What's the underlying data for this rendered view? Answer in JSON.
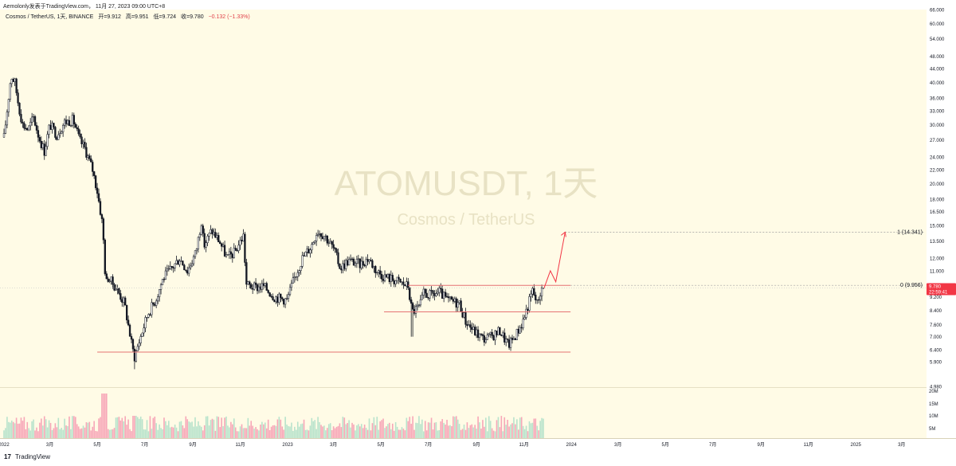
{
  "header": {
    "attribution": "Aemolonly发表于TradingView.com， 11月 27, 2023 09:00 UTC+8"
  },
  "legend": {
    "symbol": "Cosmos / TetherUS, 1天, BINANCE",
    "open": "开=9.912",
    "high": "高=9.951",
    "low": "低=9.724",
    "close": "收=9.780",
    "change": "−0.132 (−1.33%)"
  },
  "watermark": {
    "ticker": "ATOMUSDT, 1天",
    "name": "Cosmos / TetherUS"
  },
  "price_tag": {
    "price": "9.780",
    "countdown": "22:59:41"
  },
  "fib_labels": {
    "level_1": "1 (14.341)",
    "level_0": "0 (9.956)"
  },
  "footer": {
    "brand": "TradingView"
  },
  "colors": {
    "background": "#fffbe6",
    "candle": "#131722",
    "support_line": "#e57373",
    "fib_line": "#9e9e9e",
    "projection": "#f23645",
    "price_tag": "#f23645",
    "volume": "#f06292",
    "watermark": "#e8e2c4"
  },
  "chart_data": {
    "type": "line",
    "title": "",
    "xlabel": "",
    "ylabel": "",
    "y_scale": "log",
    "ylim": [
      4.98,
      66.0
    ],
    "y_ticks": [
      66.0,
      60.0,
      54.0,
      48.0,
      44.0,
      40.0,
      36.0,
      33.0,
      30.0,
      27.0,
      24.0,
      22.0,
      20.0,
      18.0,
      16.5,
      15.0,
      13.5,
      12.0,
      11.0,
      9.2,
      8.4,
      7.6,
      7.0,
      6.4,
      5.9,
      4.98
    ],
    "x_ticks": [
      "2022",
      "3月",
      "5月",
      "7月",
      "9月",
      "11月",
      "2023",
      "3月",
      "5月",
      "7月",
      "9月",
      "11月",
      "2024",
      "3月",
      "5月",
      "7月",
      "9月",
      "11月",
      "2025",
      "3月"
    ],
    "series": [
      {
        "values": [
          [
            "2022-01-01",
            27.5
          ],
          [
            "2022-01-05",
            33.0
          ],
          [
            "2022-01-10",
            42.0
          ],
          [
            "2022-01-15",
            40.0
          ],
          [
            "2022-01-20",
            34.0
          ],
          [
            "2022-01-25",
            30.0
          ],
          [
            "2022-02-01",
            29.0
          ],
          [
            "2022-02-08",
            31.5
          ],
          [
            "2022-02-15",
            27.5
          ],
          [
            "2022-02-22",
            25.0
          ],
          [
            "2022-03-01",
            30.0
          ],
          [
            "2022-03-10",
            28.0
          ],
          [
            "2022-03-20",
            30.5
          ],
          [
            "2022-03-31",
            31.0
          ],
          [
            "2022-04-08",
            27.0
          ],
          [
            "2022-04-15",
            25.5
          ],
          [
            "2022-04-25",
            22.0
          ],
          [
            "2022-05-01",
            19.0
          ],
          [
            "2022-05-08",
            15.0
          ],
          [
            "2022-05-12",
            10.0
          ],
          [
            "2022-05-15",
            10.5
          ],
          [
            "2022-05-25",
            9.8
          ],
          [
            "2022-06-05",
            8.8
          ],
          [
            "2022-06-15",
            6.5
          ],
          [
            "2022-06-18",
            6.1
          ],
          [
            "2022-06-25",
            6.9
          ],
          [
            "2022-07-05",
            8.2
          ],
          [
            "2022-07-15",
            9.0
          ],
          [
            "2022-07-25",
            10.5
          ],
          [
            "2022-08-05",
            11.2
          ],
          [
            "2022-08-15",
            12.0
          ],
          [
            "2022-08-25",
            11.0
          ],
          [
            "2022-09-05",
            12.5
          ],
          [
            "2022-09-12",
            15.5
          ],
          [
            "2022-09-15",
            13.0
          ],
          [
            "2022-09-25",
            14.5
          ],
          [
            "2022-10-05",
            13.5
          ],
          [
            "2022-10-15",
            12.0
          ],
          [
            "2022-10-25",
            12.5
          ],
          [
            "2022-11-05",
            14.0
          ],
          [
            "2022-11-09",
            10.0
          ],
          [
            "2022-11-20",
            9.8
          ],
          [
            "2022-12-01",
            9.9
          ],
          [
            "2022-12-15",
            9.2
          ],
          [
            "2022-12-31",
            9.0
          ],
          [
            "2023-01-10",
            10.5
          ],
          [
            "2023-01-20",
            12.0
          ],
          [
            "2023-01-31",
            13.0
          ],
          [
            "2023-02-08",
            14.5
          ],
          [
            "2023-02-18",
            14.0
          ],
          [
            "2023-03-01",
            12.8
          ],
          [
            "2023-03-10",
            11.2
          ],
          [
            "2023-03-20",
            11.8
          ],
          [
            "2023-04-05",
            11.5
          ],
          [
            "2023-04-15",
            12.0
          ],
          [
            "2023-04-25",
            11.0
          ],
          [
            "2023-05-05",
            10.6
          ],
          [
            "2023-05-20",
            10.3
          ],
          [
            "2023-06-05",
            9.9
          ],
          [
            "2023-06-10",
            8.3
          ],
          [
            "2023-06-20",
            8.6
          ],
          [
            "2023-06-25",
            9.4
          ],
          [
            "2023-07-05",
            9.3
          ],
          [
            "2023-07-15",
            9.5
          ],
          [
            "2023-07-25",
            9.0
          ],
          [
            "2023-08-10",
            8.8
          ],
          [
            "2023-08-18",
            7.8
          ],
          [
            "2023-08-28",
            7.3
          ],
          [
            "2023-09-10",
            6.9
          ],
          [
            "2023-09-20",
            7.0
          ],
          [
            "2023-10-01",
            7.3
          ],
          [
            "2023-10-12",
            6.6
          ],
          [
            "2023-10-20",
            7.0
          ],
          [
            "2023-10-30",
            7.7
          ],
          [
            "2023-11-05",
            8.5
          ],
          [
            "2023-11-12",
            9.6
          ],
          [
            "2023-11-18",
            8.8
          ],
          [
            "2023-11-22",
            9.5
          ],
          [
            "2023-11-27",
            9.78
          ]
        ]
      }
    ],
    "horizontal_levels": [
      6.3,
      8.3,
      9.956,
      14.341
    ],
    "projection_path": [
      [
        "2023-11-27",
        9.78
      ],
      [
        "2023-12-05",
        11.0
      ],
      [
        "2023-12-12",
        10.2
      ],
      [
        "2023-12-24",
        14.341
      ]
    ]
  }
}
